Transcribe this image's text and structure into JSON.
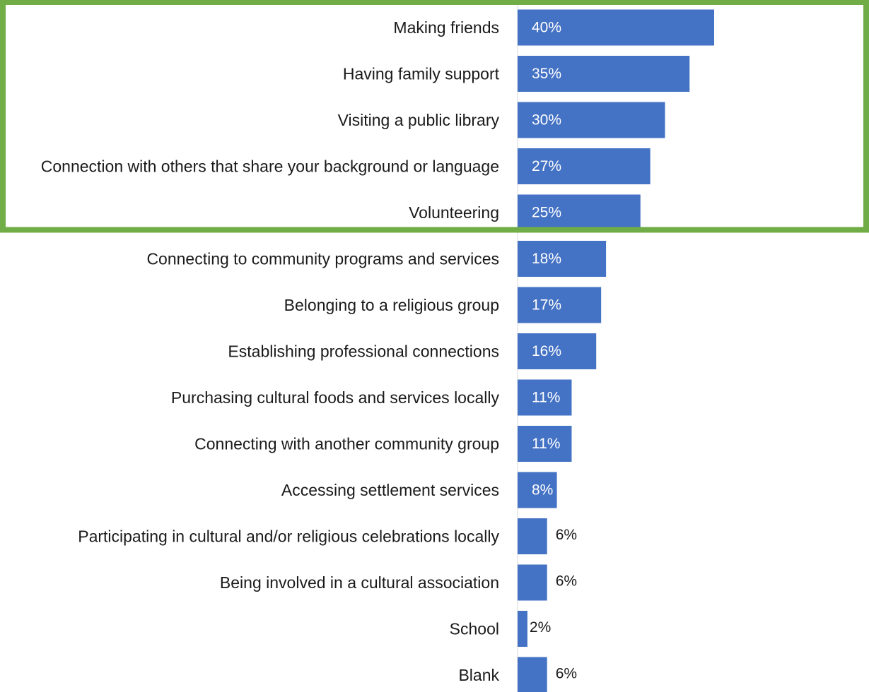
{
  "chart_data": {
    "type": "bar",
    "orientation": "horizontal",
    "categories": [
      "Making friends",
      "Having family support",
      "Visiting a public library",
      "Connection with others that share your background or language",
      "Volunteering",
      "Connecting to community programs and services",
      "Belonging to a religious group",
      "Establishing professional connections",
      "Purchasing cultural foods and services locally",
      "Connecting with another community group",
      "Accessing settlement services",
      "Participating in cultural and/or religious celebrations locally",
      "Being involved in a cultural association",
      "School",
      "Blank"
    ],
    "values": [
      40,
      35,
      30,
      27,
      25,
      18,
      17,
      16,
      11,
      11,
      8,
      6,
      6,
      2,
      6
    ],
    "value_labels": [
      "40%",
      "35%",
      "30%",
      "27%",
      "25%",
      "18%",
      "17%",
      "16%",
      "11%",
      "11%",
      "8%",
      "6%",
      "6%",
      "2%",
      "6%"
    ],
    "unit": "%",
    "title": "",
    "xlabel": "",
    "ylabel": "",
    "grid": false,
    "legend": "none",
    "highlight": {
      "first_n": 5,
      "color": "#70ad47"
    },
    "colors": {
      "bar": "#4472c4",
      "label_inside": "#ffffff",
      "label_outside": "#1a1a1a"
    }
  }
}
